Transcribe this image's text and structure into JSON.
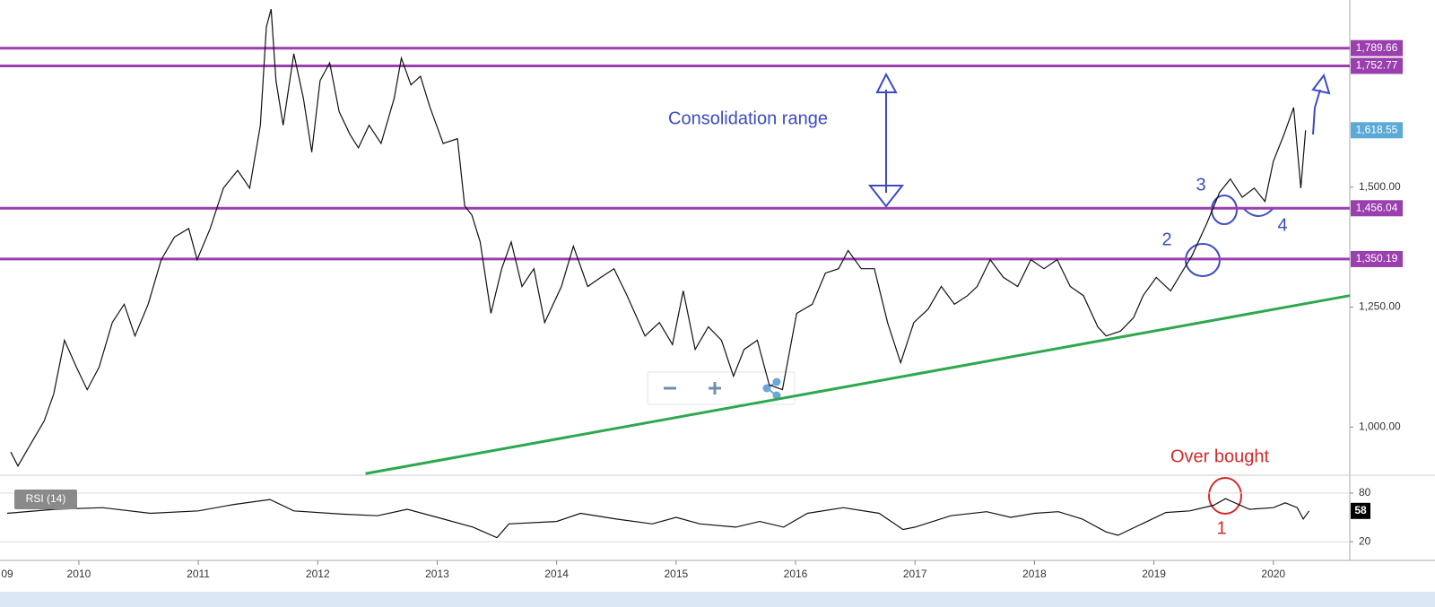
{
  "chart_data": [
    {
      "type": "line",
      "x": [
        2009.43,
        2009.49,
        2009.6,
        2009.71,
        2009.79,
        2009.88,
        2009.98,
        2010.07,
        2010.17,
        2010.28,
        2010.38,
        2010.47,
        2010.58,
        2010.69,
        2010.8,
        2010.92,
        2010.99,
        2011.1,
        2011.21,
        2011.33,
        2011.43,
        2011.52,
        2011.57,
        2011.61,
        2011.65,
        2011.71,
        2011.8,
        2011.88,
        2011.95,
        2012.02,
        2012.1,
        2012.18,
        2012.27,
        2012.34,
        2012.43,
        2012.53,
        2012.64,
        2012.7,
        2012.78,
        2012.86,
        2012.94,
        2013.05,
        2013.17,
        2013.23,
        2013.29,
        2013.36,
        2013.45,
        2013.54,
        2013.62,
        2013.71,
        2013.81,
        2013.9,
        2014.04,
        2014.14,
        2014.26,
        2014.37,
        2014.48,
        2014.59,
        2014.74,
        2014.86,
        2014.97,
        2015.06,
        2015.16,
        2015.27,
        2015.38,
        2015.48,
        2015.57,
        2015.68,
        2015.78,
        2015.89,
        2016.01,
        2016.14,
        2016.25,
        2016.36,
        2016.44,
        2016.55,
        2016.66,
        2016.77,
        2016.88,
        2016.99,
        2017.11,
        2017.22,
        2017.33,
        2017.44,
        2017.52,
        2017.63,
        2017.74,
        2017.86,
        2017.97,
        2018.08,
        2018.19,
        2018.3,
        2018.41,
        2018.53,
        2018.6,
        2018.72,
        2018.83,
        2018.91,
        2019.02,
        2019.14,
        2019.23,
        2019.32,
        2019.44,
        2019.55,
        2019.64,
        2019.74,
        2019.84,
        2019.93,
        2020.0,
        2020.09,
        2020.17,
        2020.23,
        2020.27
      ],
      "values": [
        948,
        919,
        966,
        1013,
        1069,
        1181,
        1125,
        1078,
        1125,
        1218,
        1256,
        1190,
        1256,
        1349,
        1396,
        1414,
        1349,
        1414,
        1498,
        1535,
        1498,
        1629,
        1834,
        1871,
        1722,
        1629,
        1778,
        1685,
        1573,
        1722,
        1759,
        1657,
        1610,
        1582,
        1629,
        1591,
        1685,
        1769,
        1713,
        1731,
        1666,
        1591,
        1601,
        1461,
        1442,
        1386,
        1237,
        1330,
        1386,
        1293,
        1330,
        1218,
        1293,
        1377,
        1293,
        1312,
        1330,
        1274,
        1190,
        1218,
        1172,
        1284,
        1162,
        1209,
        1181,
        1106,
        1162,
        1181,
        1088,
        1078,
        1237,
        1256,
        1321,
        1330,
        1368,
        1330,
        1330,
        1218,
        1134,
        1218,
        1246,
        1293,
        1256,
        1274,
        1293,
        1349,
        1312,
        1293,
        1349,
        1330,
        1349,
        1293,
        1274,
        1209,
        1190,
        1200,
        1228,
        1274,
        1312,
        1284,
        1321,
        1358,
        1423,
        1489,
        1517,
        1479,
        1498,
        1470,
        1554,
        1610,
        1666,
        1498,
        1618.55
      ],
      "color": "#111111",
      "xlim": [
        2009.34,
        2020.64
      ],
      "xticks": [
        {
          "value": 2009,
          "label": "09"
        },
        2010,
        2011,
        2012,
        2013,
        2014,
        2015,
        2016,
        2017,
        2018,
        2019,
        2020
      ],
      "ylim": [
        899.8,
        1890
      ],
      "yticks": [
        {
          "value": 1000,
          "label": "1,000.00"
        },
        {
          "value": 1250,
          "label": "1,250.00"
        },
        {
          "value": 1500,
          "label": "1,500.00"
        }
      ],
      "grid": false,
      "levels": [
        {
          "value": 1789.66,
          "label": "1,789.66"
        },
        {
          "value": 1752.77,
          "label": "1,752.77"
        },
        {
          "value": 1456.04,
          "label": "1,456.04"
        },
        {
          "value": 1350.19,
          "label": "1,350.19"
        }
      ],
      "level_color": "#9a3fae",
      "last_price": {
        "value": 1618.55,
        "label": "1,618.55"
      },
      "last_price_color": "#5aa9d6",
      "trendline": {
        "x": [
          2012.4,
          2020.64
        ],
        "values": [
          903,
          1274
        ],
        "color": "#2ea84e"
      },
      "annotations": [
        {
          "text": "Consolidation range",
          "color": "#3c4bc2"
        },
        {
          "text": "Over bought",
          "color": "#d42a2a"
        },
        {
          "text": "1",
          "color": "#d42a2a"
        },
        {
          "text": "2",
          "color": "#3c4bc2"
        },
        {
          "text": "3",
          "color": "#3c4bc2"
        },
        {
          "text": "4",
          "color": "#3c4bc2"
        }
      ]
    },
    {
      "type": "line",
      "title": "RSI (14)",
      "x": [
        2009.4,
        2009.8,
        2010.2,
        2010.6,
        2011.0,
        2011.3,
        2011.6,
        2011.8,
        2012.2,
        2012.5,
        2012.75,
        2013.0,
        2013.3,
        2013.5,
        2013.6,
        2014.0,
        2014.2,
        2014.5,
        2014.8,
        2015.0,
        2015.2,
        2015.5,
        2015.7,
        2015.9,
        2016.1,
        2016.4,
        2016.7,
        2016.9,
        2017.0,
        2017.3,
        2017.6,
        2017.8,
        2018.0,
        2018.2,
        2018.4,
        2018.6,
        2018.7,
        2018.9,
        2019.1,
        2019.3,
        2019.5,
        2019.6,
        2019.8,
        2020.0,
        2020.1,
        2020.2,
        2020.25,
        2020.3
      ],
      "values": [
        55,
        60,
        62,
        55,
        58,
        66,
        72,
        58,
        54,
        52,
        60,
        50,
        38,
        25,
        42,
        45,
        55,
        48,
        42,
        50,
        42,
        38,
        45,
        38,
        55,
        62,
        55,
        35,
        38,
        52,
        57,
        50,
        55,
        57,
        48,
        32,
        28,
        42,
        56,
        58,
        65,
        73,
        60,
        62,
        68,
        62,
        48,
        58
      ],
      "color": "#111111",
      "xlim": [
        2009.34,
        2020.64
      ],
      "ylim": [
        -3,
        102
      ],
      "yticks": [
        80,
        20
      ],
      "grid": true
    }
  ]
}
